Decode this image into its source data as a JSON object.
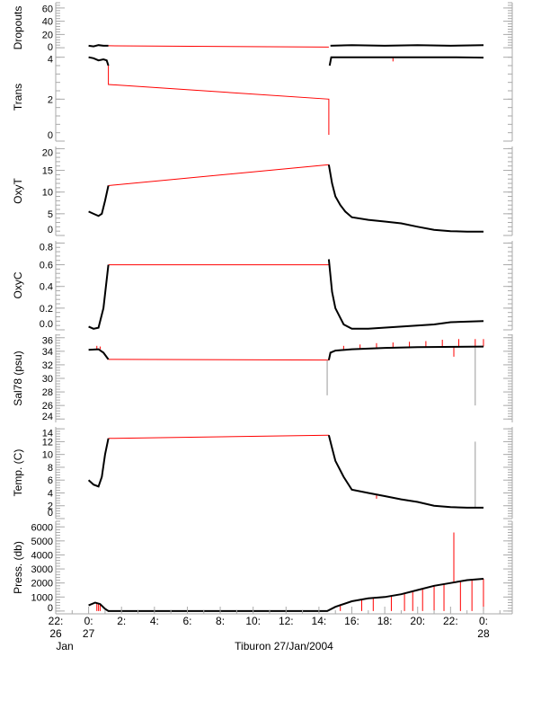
{
  "chart_data": {
    "type": "line",
    "title": "",
    "xlabel": "Tiburon 27/Jan/2004",
    "xlim_hours": [
      -2,
      25.75
    ],
    "x_ticks": [
      {
        "h": -2,
        "top": "22:",
        "bottom": "26",
        "extra": "Jan"
      },
      {
        "h": 0,
        "top": "0:",
        "bottom": "27"
      },
      {
        "h": 2,
        "top": "2:"
      },
      {
        "h": 4,
        "top": "4:"
      },
      {
        "h": 6,
        "top": "6:"
      },
      {
        "h": 8,
        "top": "8:"
      },
      {
        "h": 10,
        "top": "10:"
      },
      {
        "h": 12,
        "top": "12:"
      },
      {
        "h": 14,
        "top": "14:"
      },
      {
        "h": 16,
        "top": "16:"
      },
      {
        "h": 18,
        "top": "18:"
      },
      {
        "h": 20,
        "top": "20:"
      },
      {
        "h": 22,
        "top": "22:"
      },
      {
        "h": 24,
        "top": "0:",
        "bottom": "28"
      }
    ],
    "colors": {
      "data": "#000000",
      "gap": "#ff0000",
      "axis": "#aaaaaa",
      "spike_gray": "#999999"
    },
    "panels": [
      {
        "name": "dropouts",
        "ylabel": "Dropouts",
        "ylim": [
          -8,
          68
        ],
        "ticks": [
          "0",
          "20",
          "40",
          "60"
        ],
        "tick_vals": [
          0,
          20,
          40,
          60
        ],
        "black": [
          [
            0,
            3
          ],
          [
            0.3,
            2
          ],
          [
            0.6,
            4
          ],
          [
            0.9,
            3
          ],
          [
            1.2,
            3
          ]
        ],
        "black2": [
          [
            14.7,
            3
          ],
          [
            16,
            4
          ],
          [
            18,
            3
          ],
          [
            20,
            4
          ],
          [
            22,
            3
          ],
          [
            24,
            4
          ]
        ],
        "red": [
          [
            1.2,
            3
          ],
          [
            14.6,
            1
          ]
        ],
        "spikes": []
      },
      {
        "name": "trans",
        "ylabel": "Trans",
        "ylim": [
          0,
          4.2
        ],
        "ticks": [
          "0",
          "2",
          "4"
        ],
        "tick_vals": [
          0,
          2,
          4
        ],
        "black": [
          [
            0,
            4.0
          ],
          [
            0.3,
            3.95
          ],
          [
            0.6,
            3.85
          ],
          [
            0.9,
            3.9
          ],
          [
            1.1,
            3.85
          ],
          [
            1.2,
            3.6
          ]
        ],
        "black2": [
          [
            14.65,
            3.6
          ],
          [
            14.75,
            4.0
          ],
          [
            16,
            4.0
          ],
          [
            18,
            4.0
          ],
          [
            20,
            4.0
          ],
          [
            22,
            4.0
          ],
          [
            24,
            3.98
          ]
        ],
        "red": [
          [
            1.2,
            3.6
          ],
          [
            1.2,
            2.7
          ],
          [
            14.6,
            2.0
          ],
          [
            14.6,
            0.3
          ]
        ],
        "spikes": [
          [
            18.5,
            4.0,
            3.8,
            "red"
          ]
        ]
      },
      {
        "name": "oxyt",
        "ylabel": "OxyT",
        "ylim": [
          0,
          20.5
        ],
        "ticks": [
          "0",
          "5",
          "10",
          "15",
          "20"
        ],
        "tick_vals": [
          0,
          5,
          10,
          15,
          20
        ],
        "black": [
          [
            0,
            5.5
          ],
          [
            0.3,
            5
          ],
          [
            0.6,
            4.5
          ],
          [
            0.8,
            5
          ],
          [
            1.0,
            8
          ],
          [
            1.2,
            11.5
          ]
        ],
        "black2": [
          [
            14.6,
            16.3
          ],
          [
            14.8,
            12
          ],
          [
            15,
            9
          ],
          [
            15.3,
            7
          ],
          [
            15.6,
            5.5
          ],
          [
            16,
            4.2
          ],
          [
            17,
            3.6
          ],
          [
            18,
            3.2
          ],
          [
            19,
            2.8
          ],
          [
            20,
            2
          ],
          [
            21,
            1.3
          ],
          [
            22,
            1
          ],
          [
            23,
            0.9
          ],
          [
            24,
            0.9
          ]
        ],
        "red": [
          [
            1.2,
            11.5
          ],
          [
            14.6,
            16.3
          ]
        ],
        "spikes": []
      },
      {
        "name": "oxyc",
        "ylabel": "OxyC",
        "ylim": [
          0,
          0.82
        ],
        "ticks": [
          "0.0",
          "0.2",
          "0.4",
          "0.6",
          "0.8"
        ],
        "tick_vals": [
          0,
          0.2,
          0.4,
          0.6,
          0.8
        ],
        "black": [
          [
            0,
            0.03
          ],
          [
            0.3,
            0.01
          ],
          [
            0.6,
            0.02
          ],
          [
            0.9,
            0.2
          ],
          [
            1.2,
            0.6
          ]
        ],
        "black2": [
          [
            14.6,
            0.65
          ],
          [
            14.8,
            0.35
          ],
          [
            15,
            0.2
          ],
          [
            15.5,
            0.05
          ],
          [
            16,
            0.01
          ],
          [
            17,
            0.01
          ],
          [
            19,
            0.03
          ],
          [
            21,
            0.05
          ],
          [
            22,
            0.07
          ],
          [
            24,
            0.08
          ]
        ],
        "red": [
          [
            1.2,
            0.6
          ],
          [
            14.6,
            0.6
          ]
        ],
        "spikes": []
      },
      {
        "name": "sal78",
        "ylabel": "Sal78 (psu)",
        "ylim": [
          23.5,
          36.5
        ],
        "ticks": [
          "24",
          "26",
          "28",
          "30",
          "32",
          "34",
          "36"
        ],
        "tick_vals": [
          24,
          26,
          28,
          30,
          32,
          34,
          36
        ],
        "black": [
          [
            0,
            34.2
          ],
          [
            0.6,
            34.3
          ],
          [
            0.9,
            33.8
          ],
          [
            1.2,
            32.8
          ]
        ],
        "black2": [
          [
            14.6,
            32.7
          ],
          [
            14.7,
            33.8
          ],
          [
            15,
            34.1
          ],
          [
            16,
            34.3
          ],
          [
            18,
            34.5
          ],
          [
            20,
            34.6
          ],
          [
            24,
            34.7
          ]
        ],
        "red": [
          [
            1.2,
            32.8
          ],
          [
            14.6,
            32.7
          ]
        ],
        "spikes": [
          [
            0.5,
            34.3,
            34.8,
            "red"
          ],
          [
            0.7,
            34.3,
            34.7,
            "red"
          ],
          [
            14.5,
            32.7,
            27.5,
            "gray"
          ],
          [
            15.5,
            34.2,
            34.8,
            "red"
          ],
          [
            16.5,
            34.3,
            35.0,
            "red"
          ],
          [
            17.5,
            34.4,
            35.2,
            "red"
          ],
          [
            18.5,
            34.5,
            35.3,
            "red"
          ],
          [
            19.5,
            34.5,
            35.4,
            "red"
          ],
          [
            20.5,
            34.6,
            35.5,
            "red"
          ],
          [
            21.5,
            34.6,
            35.7,
            "red"
          ],
          [
            22.2,
            34.6,
            33.2,
            "red"
          ],
          [
            22.5,
            34.6,
            35.8,
            "red"
          ],
          [
            23.5,
            34.7,
            26.0,
            "gray"
          ],
          [
            23.5,
            34.7,
            35.8,
            "red"
          ],
          [
            24,
            34.7,
            35.8,
            "red"
          ]
        ]
      },
      {
        "name": "temp",
        "ylabel": "Temp. (C)",
        "ylim": [
          0,
          14.3
        ],
        "ticks": [
          "0",
          "2",
          "4",
          "6",
          "8",
          "10",
          "12",
          "14"
        ],
        "tick_vals": [
          0,
          2,
          4,
          6,
          8,
          10,
          12,
          14
        ],
        "black": [
          [
            0,
            6
          ],
          [
            0.3,
            5.3
          ],
          [
            0.6,
            5
          ],
          [
            0.8,
            6.5
          ],
          [
            1,
            10
          ],
          [
            1.2,
            12.5
          ]
        ],
        "black2": [
          [
            14.6,
            13
          ],
          [
            14.8,
            11
          ],
          [
            15,
            9
          ],
          [
            15.5,
            6.5
          ],
          [
            16,
            4.5
          ],
          [
            17,
            4
          ],
          [
            18,
            3.5
          ],
          [
            19,
            3
          ],
          [
            20,
            2.6
          ],
          [
            21,
            2
          ],
          [
            22,
            1.8
          ],
          [
            23,
            1.7
          ],
          [
            24,
            1.7
          ]
        ],
        "red": [
          [
            1.2,
            12.5
          ],
          [
            14.6,
            13
          ]
        ],
        "spikes": [
          [
            23.5,
            1.7,
            12,
            "gray"
          ],
          [
            17.5,
            3.7,
            3.1,
            "red"
          ]
        ]
      },
      {
        "name": "press",
        "ylabel": "Press. (db)",
        "ylim": [
          -200,
          6400
        ],
        "ticks": [
          "0",
          "1000",
          "2000",
          "3000",
          "4000",
          "5000",
          "6000"
        ],
        "tick_vals": [
          0,
          1000,
          2000,
          3000,
          4000,
          5000,
          6000
        ],
        "black": [
          [
            0,
            400
          ],
          [
            0.4,
            600
          ],
          [
            0.7,
            500
          ],
          [
            1,
            150
          ],
          [
            1.2,
            0
          ],
          [
            14.5,
            0
          ],
          [
            15,
            300
          ],
          [
            16,
            700
          ],
          [
            17,
            900
          ],
          [
            18,
            1000
          ],
          [
            19,
            1200
          ],
          [
            20,
            1500
          ],
          [
            21,
            1800
          ],
          [
            22,
            2000
          ],
          [
            23,
            2200
          ],
          [
            24,
            2300
          ]
        ],
        "black2": [],
        "red": [],
        "spikes": [
          [
            0.5,
            600,
            0,
            "red"
          ],
          [
            0.6,
            550,
            0,
            "red"
          ],
          [
            0.7,
            500,
            0,
            "red"
          ],
          [
            15.3,
            450,
            0,
            "red"
          ],
          [
            16.6,
            800,
            0,
            "red"
          ],
          [
            17.3,
            900,
            0,
            "red"
          ],
          [
            18.4,
            1050,
            0,
            "red"
          ],
          [
            19.2,
            1250,
            0,
            "red"
          ],
          [
            19.7,
            1350,
            0,
            "red"
          ],
          [
            20.3,
            1600,
            0,
            "red"
          ],
          [
            21,
            1800,
            0,
            "red"
          ],
          [
            21.6,
            1900,
            0,
            "red"
          ],
          [
            22.2,
            2050,
            5600,
            "red"
          ],
          [
            22.6,
            2100,
            0,
            "red"
          ],
          [
            23.3,
            2200,
            0,
            "red"
          ],
          [
            24,
            2300,
            0,
            "red"
          ]
        ]
      }
    ]
  }
}
